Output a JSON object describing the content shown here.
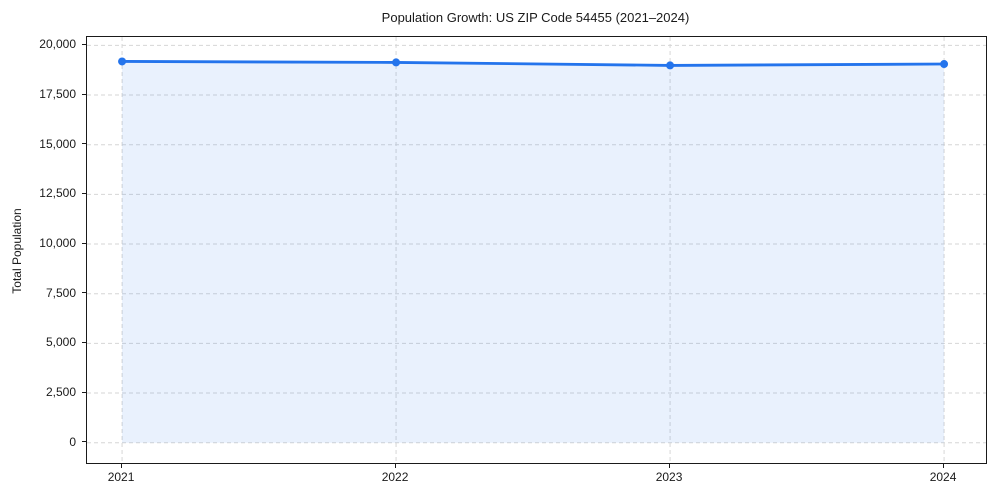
{
  "chart_data": {
    "type": "area",
    "title": "Population Growth: US ZIP Code 54455 (2021–2024)",
    "xlabel": "",
    "ylabel": "Total Population",
    "x": [
      2021,
      2022,
      2023,
      2024
    ],
    "series": [
      {
        "name": "Total Population",
        "values": [
          19190,
          19140,
          18990,
          19060
        ]
      }
    ],
    "xticks": [
      2021,
      2022,
      2023,
      2024
    ],
    "xtick_labels": [
      "2021",
      "2022",
      "2023",
      "2024"
    ],
    "yticks": [
      0,
      2500,
      5000,
      7500,
      10000,
      12500,
      15000,
      17500,
      20000
    ],
    "ytick_labels": [
      "0",
      "2,500",
      "5,000",
      "7,500",
      "10,000",
      "12,500",
      "15,000",
      "17,500",
      "20,000"
    ],
    "xlim": [
      2020.872,
      2024.153
    ],
    "ylim": [
      -1020,
      20420
    ],
    "grid": true,
    "grid_style": "dashed",
    "legend": "none",
    "marker": "circle",
    "colors": {
      "line": "#2474ec",
      "marker": "#2474ec",
      "fill": "#2474ec",
      "fill_opacity": 0.1,
      "grid": "#d6d6d6",
      "spine": "#1a1a1a",
      "text": "#1a1a1a",
      "background": "#ffffff"
    }
  }
}
